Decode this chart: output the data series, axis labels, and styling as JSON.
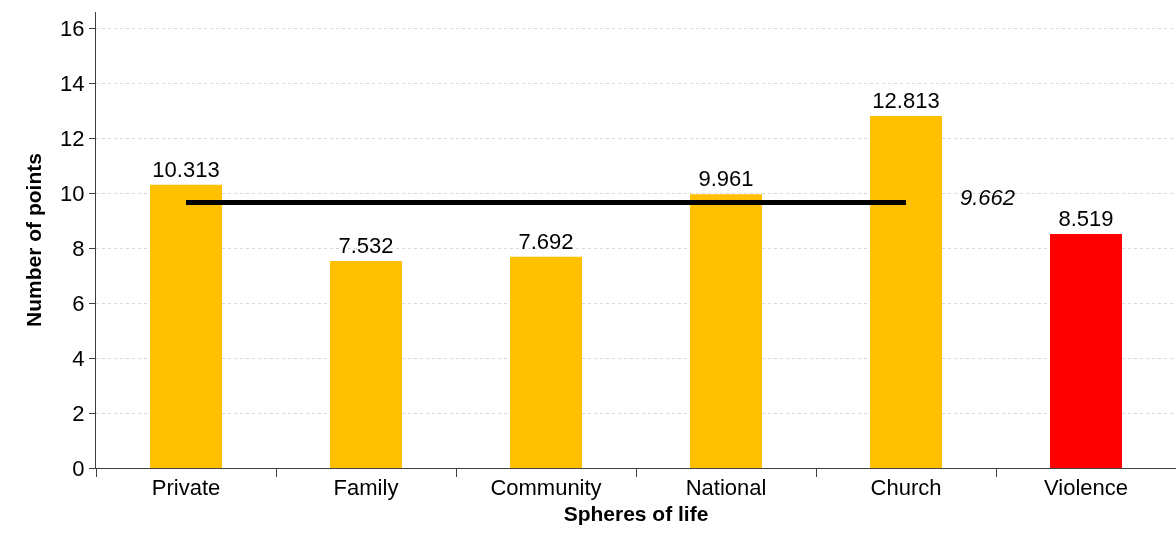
{
  "chart_data": {
    "type": "bar",
    "xlabel": "Spheres of life",
    "ylabel": "Number of points",
    "categories": [
      "Private",
      "Family",
      "Community",
      "National",
      "Church",
      "Violence"
    ],
    "series": [
      {
        "colors": [
          "#ffc000",
          "#ffc000",
          "#ffc000",
          "#ffc000",
          "#ffc000",
          "#ff0000"
        ],
        "values": [
          10.313,
          7.532,
          7.692,
          9.961,
          12.813,
          8.519
        ],
        "value_labels": [
          "10.313",
          "7.532",
          "7.692",
          "9.961",
          "12.813",
          "8.519"
        ]
      },
      {
        "type": "line",
        "color": "#000000",
        "values": [
          9.662,
          9.662,
          9.662,
          9.662,
          9.662,
          null
        ]
      }
    ],
    "annotations": [
      "9.662"
    ],
    "ylim": [
      0,
      16.6
    ],
    "yticks": [
      0,
      2,
      4,
      6,
      8,
      10,
      12,
      14,
      16
    ],
    "grid": "y"
  }
}
